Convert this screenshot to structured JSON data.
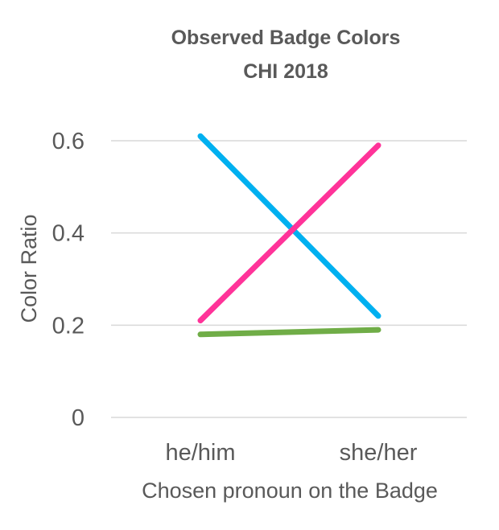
{
  "chart_data": {
    "type": "line",
    "title_lines": [
      "Observed Badge Colors",
      "CHI 2018"
    ],
    "xlabel": "Chosen pronoun on the Badge",
    "ylabel": "Color Ratio",
    "categories": [
      "he/him",
      "she/her"
    ],
    "y_ticks": [
      0,
      0.2,
      0.4,
      0.6
    ],
    "y_tick_labels": [
      "0",
      "0.2",
      "0.4",
      "0.6"
    ],
    "ylim": [
      0,
      0.6
    ],
    "grid": true,
    "legend": "none",
    "series": [
      {
        "color": "#00b0f0",
        "values": [
          0.61,
          0.22
        ]
      },
      {
        "color": "#ff3399",
        "values": [
          0.21,
          0.59
        ]
      },
      {
        "color": "#70ad47",
        "values": [
          0.18,
          0.19
        ]
      }
    ]
  }
}
